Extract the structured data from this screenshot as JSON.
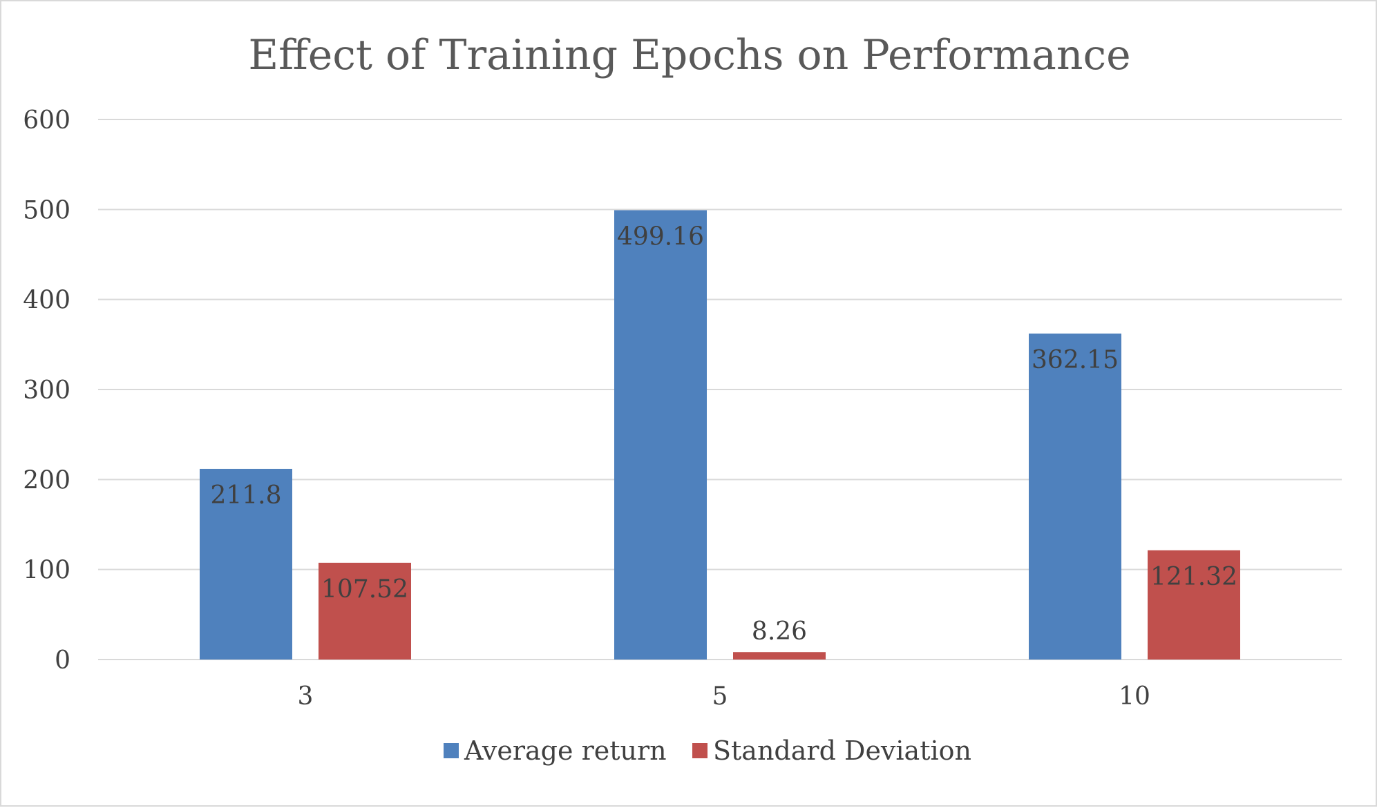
{
  "chart_data": {
    "type": "bar",
    "title": "Effect of Training Epochs on Performance",
    "xlabel": "",
    "ylabel": "",
    "categories": [
      "3",
      "5",
      "10"
    ],
    "series": [
      {
        "name": "Average return",
        "values": [
          211.8,
          499.16,
          362.15
        ],
        "color": "#4f81bd",
        "labels": [
          "211.8",
          "499.16",
          "362.15"
        ]
      },
      {
        "name": "Standard Deviation",
        "values": [
          107.52,
          8.26,
          121.32
        ],
        "color": "#c0504d",
        "labels": [
          "107.52",
          "8.26",
          "121.32"
        ]
      }
    ],
    "ylim": [
      0,
      600
    ],
    "yticks": [
      "0",
      "100",
      "200",
      "300",
      "400",
      "500",
      "600"
    ],
    "grid": true,
    "legend_position": "bottom",
    "text_color": "#404040",
    "grid_color": "#d9d9d9"
  }
}
